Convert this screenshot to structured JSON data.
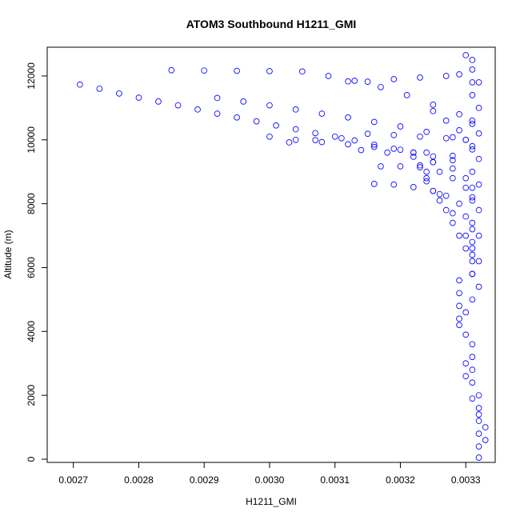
{
  "chart_data": {
    "type": "scatter",
    "title": "ATOM3 Southbound H1211_GMI",
    "xlabel": "H1211_GMI",
    "ylabel": "Altitude (m)",
    "xlim": [
      0.00266,
      0.003345
    ],
    "ylim": [
      -100,
      12900
    ],
    "x_ticks": [
      0.0027,
      0.0028,
      0.0029,
      0.003,
      0.0031,
      0.0032,
      0.0033
    ],
    "x_tick_labels": [
      "0.0027",
      "0.0028",
      "0.0029",
      "0.0030",
      "0.0031",
      "0.0032",
      "0.0033"
    ],
    "y_ticks": [
      0,
      2000,
      4000,
      6000,
      8000,
      10000,
      12000
    ],
    "y_tick_labels": [
      "0",
      "2000",
      "4000",
      "6000",
      "8000",
      "10000",
      "12000"
    ],
    "grid": false,
    "legend": "none",
    "marker": "open-circle",
    "color": "#0000FF",
    "series": [
      {
        "points": [
          [
            0.00271,
            11730
          ],
          [
            0.00274,
            11600
          ],
          [
            0.00277,
            11450
          ],
          [
            0.0028,
            11320
          ],
          [
            0.00283,
            11200
          ],
          [
            0.00286,
            11080
          ],
          [
            0.00289,
            10950
          ],
          [
            0.00292,
            10820
          ],
          [
            0.00295,
            10700
          ],
          [
            0.00298,
            10580
          ],
          [
            0.00301,
            10450
          ],
          [
            0.00304,
            10330
          ],
          [
            0.00307,
            10210
          ],
          [
            0.0031,
            10100
          ],
          [
            0.00313,
            9980
          ],
          [
            0.00316,
            9850
          ],
          [
            0.00319,
            9720
          ],
          [
            0.00322,
            9600
          ],
          [
            0.00325,
            9480
          ],
          [
            0.00328,
            9360
          ],
          [
            0.00285,
            12180
          ],
          [
            0.0029,
            12170
          ],
          [
            0.00295,
            12160
          ],
          [
            0.003,
            12150
          ],
          [
            0.00305,
            12140
          ],
          [
            0.00309,
            12000
          ],
          [
            0.00313,
            11850
          ],
          [
            0.00317,
            11650
          ],
          [
            0.00321,
            11400
          ],
          [
            0.00325,
            11100
          ],
          [
            0.00329,
            10800
          ],
          [
            0.00331,
            10500
          ],
          [
            0.00292,
            11310
          ],
          [
            0.00296,
            11200
          ],
          [
            0.003,
            11080
          ],
          [
            0.00304,
            10950
          ],
          [
            0.00308,
            10820
          ],
          [
            0.00312,
            10700
          ],
          [
            0.00316,
            10560
          ],
          [
            0.0032,
            10420
          ],
          [
            0.00324,
            10250
          ],
          [
            0.00328,
            10080
          ],
          [
            0.00331,
            11800
          ],
          [
            0.00315,
            11820
          ],
          [
            0.00312,
            11830
          ],
          [
            0.00319,
            11900
          ],
          [
            0.00323,
            11950
          ],
          [
            0.00327,
            12000
          ],
          [
            0.00329,
            12050
          ],
          [
            0.00331,
            12500
          ],
          [
            0.003,
            10100
          ],
          [
            0.00304,
            10000
          ],
          [
            0.00308,
            9930
          ],
          [
            0.00312,
            9860
          ],
          [
            0.00316,
            9780
          ],
          [
            0.0032,
            9690
          ],
          [
            0.00324,
            9600
          ],
          [
            0.00328,
            9500
          ],
          [
            0.00303,
            9920
          ],
          [
            0.00307,
            9990
          ],
          [
            0.00311,
            10050
          ],
          [
            0.00315,
            10190
          ],
          [
            0.00319,
            10150
          ],
          [
            0.00323,
            10100
          ],
          [
            0.00327,
            10050
          ],
          [
            0.0033,
            10000
          ],
          [
            0.00316,
            8620
          ],
          [
            0.00319,
            8600
          ],
          [
            0.00322,
            8520
          ],
          [
            0.00325,
            8400
          ],
          [
            0.00327,
            8250
          ],
          [
            0.00329,
            8000
          ],
          [
            0.0033,
            7600
          ],
          [
            0.00331,
            7200
          ],
          [
            0.00331,
            6800
          ],
          [
            0.00314,
            9680
          ],
          [
            0.00318,
            9600
          ],
          [
            0.00322,
            9470
          ],
          [
            0.00325,
            9300
          ],
          [
            0.00328,
            9100
          ],
          [
            0.0033,
            8800
          ],
          [
            0.00331,
            8500
          ],
          [
            0.00317,
            9170
          ],
          [
            0.0032,
            9170
          ],
          [
            0.00323,
            9140
          ],
          [
            0.00326,
            9000
          ],
          [
            0.00328,
            8800
          ],
          [
            0.0033,
            8500
          ],
          [
            0.00331,
            8100
          ],
          [
            0.00325,
            10900
          ],
          [
            0.00327,
            10600
          ],
          [
            0.00329,
            10300
          ],
          [
            0.0033,
            10000
          ],
          [
            0.00331,
            9700
          ],
          [
            0.00325,
            9300
          ],
          [
            0.00324,
            9000
          ],
          [
            0.00324,
            8700
          ],
          [
            0.00325,
            8400
          ],
          [
            0.00326,
            8100
          ],
          [
            0.00327,
            7800
          ],
          [
            0.00328,
            7400
          ],
          [
            0.00329,
            7000
          ],
          [
            0.0033,
            6600
          ],
          [
            0.00331,
            6200
          ],
          [
            0.00322,
            9600
          ],
          [
            0.00323,
            9200
          ],
          [
            0.00324,
            8800
          ],
          [
            0.00326,
            8300
          ],
          [
            0.00328,
            7700
          ],
          [
            0.0033,
            7000
          ],
          [
            0.00331,
            6400
          ],
          [
            0.00331,
            5800
          ],
          [
            0.0033,
            12650
          ],
          [
            0.00331,
            12200
          ],
          [
            0.00332,
            11800
          ],
          [
            0.00331,
            11400
          ],
          [
            0.00332,
            11000
          ],
          [
            0.00331,
            10600
          ],
          [
            0.00332,
            10200
          ],
          [
            0.00331,
            9800
          ],
          [
            0.00332,
            9400
          ],
          [
            0.00331,
            9000
          ],
          [
            0.00332,
            8600
          ],
          [
            0.00331,
            8200
          ],
          [
            0.00332,
            7800
          ],
          [
            0.00331,
            7400
          ],
          [
            0.00332,
            7000
          ],
          [
            0.00331,
            6600
          ],
          [
            0.00332,
            6200
          ],
          [
            0.00331,
            5800
          ],
          [
            0.00332,
            5400
          ],
          [
            0.00331,
            5000
          ],
          [
            0.0033,
            4600
          ],
          [
            0.00329,
            4200
          ],
          [
            0.0033,
            3900
          ],
          [
            0.00331,
            3600
          ],
          [
            0.00331,
            3200
          ],
          [
            0.00331,
            2800
          ],
          [
            0.00331,
            2400
          ],
          [
            0.00332,
            2000
          ],
          [
            0.00332,
            1600
          ],
          [
            0.00332,
            1200
          ],
          [
            0.00332,
            800
          ],
          [
            0.00332,
            400
          ],
          [
            0.00332,
            50
          ],
          [
            0.00329,
            5600
          ],
          [
            0.00329,
            5200
          ],
          [
            0.00329,
            4800
          ],
          [
            0.00329,
            4400
          ],
          [
            0.0033,
            3000
          ],
          [
            0.0033,
            2600
          ],
          [
            0.00331,
            1900
          ],
          [
            0.00332,
            1400
          ],
          [
            0.00333,
            1000
          ],
          [
            0.00333,
            600
          ]
        ]
      }
    ]
  }
}
